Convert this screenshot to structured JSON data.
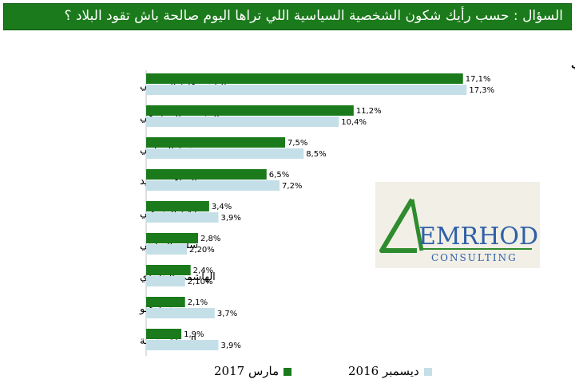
{
  "title": "السؤال :  حسب رأيك شكون الشخصية  السياسية اللي تراها اليوم صالحة باش تقود البلاد ؟",
  "colors": {
    "banner": "#1b7a1b",
    "series_2017": "#1b7a1b",
    "series_2016": "#c5dfe8"
  },
  "logo": {
    "text": "EMRHOD",
    "subtext": "CONSULTING"
  },
  "chart_data": {
    "type": "bar",
    "orientation": "horizontal",
    "note": "سؤال تلقائي",
    "categories": [
      "الباجي قايد السبسي",
      "المنصف المرزوقي",
      "حمة الهمامي",
      "الصافي سعيد",
      "راشد الغنوشي",
      "سليم الرياحي",
      "الهاشمي الحامدي",
      "محمد عبو",
      "المهدي جمعة"
    ],
    "series": [
      {
        "name": "مارس 2017",
        "values": [
          17.1,
          11.2,
          7.5,
          6.5,
          3.4,
          2.8,
          2.4,
          2.1,
          1.9
        ],
        "labels": [
          "17,1%",
          "11,2%",
          "7,5%",
          "6,5%",
          "3,4%",
          "2,8%",
          "2,4%",
          "2,1%",
          "1,9%"
        ]
      },
      {
        "name": "ديسمبر 2016",
        "values": [
          17.3,
          10.4,
          8.5,
          7.2,
          3.9,
          2.2,
          2.1,
          3.7,
          3.9
        ],
        "labels": [
          "17,3%",
          "10,4%",
          "8,5%",
          "7,2%",
          "3,9%",
          "2,20%",
          "2,10%",
          "3,7%",
          "3,9%"
        ]
      }
    ],
    "xlim": [
      0,
      18
    ],
    "grid": false,
    "legend_position": "bottom"
  }
}
